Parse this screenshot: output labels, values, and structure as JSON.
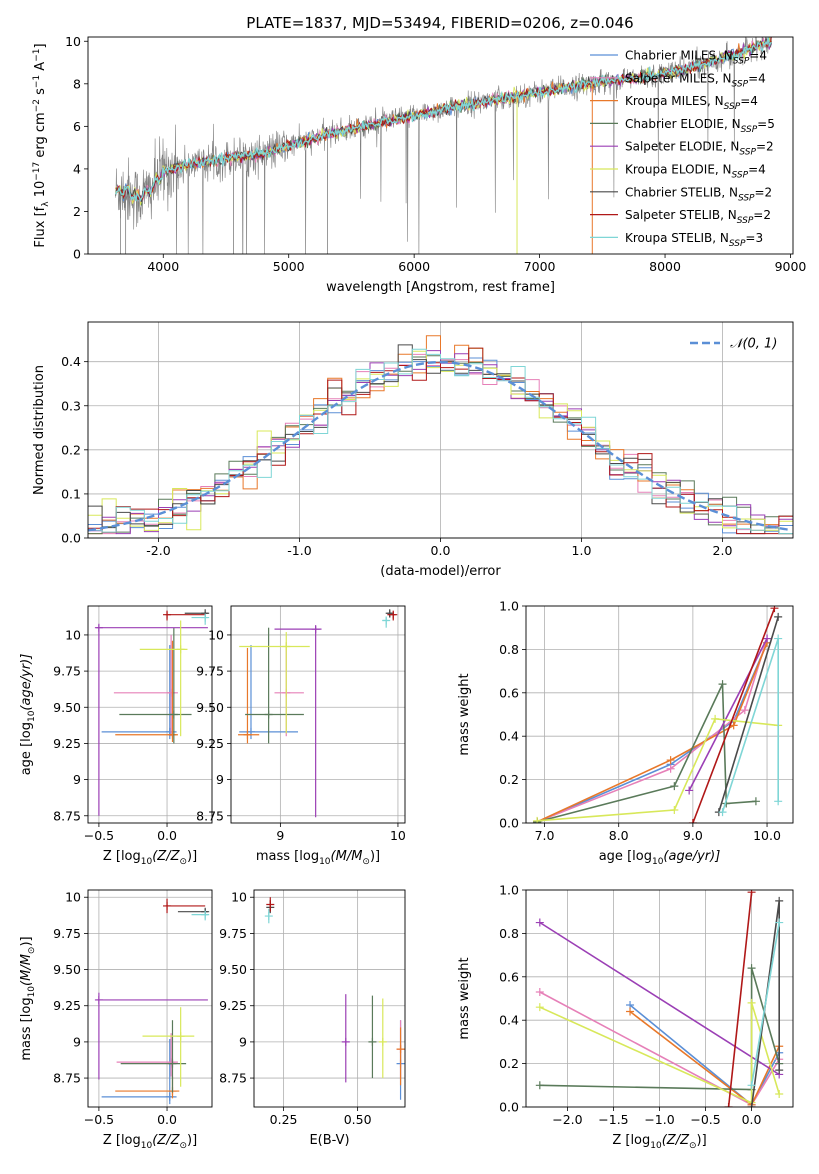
{
  "figure": {
    "title": "PLATE=1837, MJD=53494, FIBERID=0206, z=0.046"
  },
  "legend_spectrum": [
    {
      "label": "Chabrier MILES, N",
      "sub": "SSP",
      "suffix": "=4",
      "color": "#5b8fd6"
    },
    {
      "label": "Salpeter MILES, N",
      "sub": "SSP",
      "suffix": "=4",
      "color": "#e680b8"
    },
    {
      "label": "Kroupa MILES, N",
      "sub": "SSP",
      "suffix": "=4",
      "color": "#e8782a"
    },
    {
      "label": "Chabrier ELODIE, N",
      "sub": "SSP",
      "suffix": "=5",
      "color": "#5a7a5a"
    },
    {
      "label": "Salpeter ELODIE, N",
      "sub": "SSP",
      "suffix": "=2",
      "color": "#9b3fb5"
    },
    {
      "label": "Kroupa ELODIE, N",
      "sub": "SSP",
      "suffix": "=4",
      "color": "#d8e85a"
    },
    {
      "label": "Chabrier STELIB, N",
      "sub": "SSP",
      "suffix": "=2",
      "color": "#4a4a4a"
    },
    {
      "label": "Salpeter STELIB, N",
      "sub": "SSP",
      "suffix": "=2",
      "color": "#b01818"
    },
    {
      "label": "Kroupa STELIB, N",
      "sub": "SSP",
      "suffix": "=3",
      "color": "#7fd6d6"
    }
  ],
  "legend_hist": {
    "label": "𝒩(0, 1)",
    "color": "#5b8fd6"
  },
  "chart_data": [
    {
      "id": "spectrum",
      "type": "line",
      "xlabel": "wavelength [Angstrom, rest frame]",
      "ylabel": "Flux [f_λ 10^-17 erg cm^-2 s^-1 A^-1]",
      "xlim": [
        3400,
        9020
      ],
      "ylim": [
        0,
        10.2
      ],
      "xticks": [
        4000,
        5000,
        6000,
        7000,
        8000,
        9000
      ],
      "yticks": [
        0,
        2,
        4,
        6,
        8,
        10
      ],
      "continuum": {
        "x": [
          3620,
          3700,
          3800,
          3900,
          4000,
          4200,
          4500,
          4800,
          5000,
          5300,
          5600,
          6000,
          6300,
          6600,
          6900,
          7200,
          7500,
          7800,
          8100,
          8400,
          8800
        ],
        "y": [
          2.9,
          3.0,
          2.6,
          3.0,
          3.9,
          4.2,
          4.5,
          4.7,
          5.1,
          5.6,
          6.0,
          6.5,
          6.9,
          7.2,
          7.5,
          7.8,
          8.1,
          8.3,
          8.6,
          9.1,
          9.9
        ]
      },
      "grid": false
    },
    {
      "id": "residual-hist",
      "type": "histogram",
      "xlabel": "(data-model)/error",
      "ylabel": "Normed distribution",
      "xlim": [
        -2.5,
        2.5
      ],
      "ylim": [
        0,
        0.49
      ],
      "xticks": [
        -2,
        -1,
        0,
        1,
        2
      ],
      "yticks": [
        0.0,
        0.1,
        0.2,
        0.3,
        0.4
      ],
      "bin_width": 0.1,
      "grid": true
    },
    {
      "id": "age-vs-Z",
      "type": "errorbar",
      "xlabel": "Z [log10(Z/Z⊙)]",
      "ylabel": "age  [log10(age/yr)]",
      "xlim": [
        -0.58,
        0.33
      ],
      "ylim": [
        8.7,
        10.2
      ],
      "xticks": [
        -0.5,
        0.0
      ],
      "yticks": [
        8.75,
        9.0,
        9.25,
        9.5,
        9.75,
        10.0
      ],
      "points": [
        {
          "x": 0.02,
          "xerr": [
            0.5,
            0.05
          ],
          "y": 9.33,
          "yerr": [
            0.05,
            0.6
          ],
          "color": "#5b8fd6"
        },
        {
          "x": 0.03,
          "xerr": [
            0.42,
            0.05
          ],
          "y": 9.6,
          "yerr": [
            0.3,
            0.4
          ],
          "color": "#e680b8"
        },
        {
          "x": 0.04,
          "xerr": [
            0.42,
            0.04
          ],
          "y": 9.31,
          "yerr": [
            0.05,
            0.65
          ],
          "color": "#e8782a"
        },
        {
          "x": 0.05,
          "xerr": [
            0.4,
            0.13
          ],
          "y": 9.45,
          "yerr": [
            0.2,
            0.6
          ],
          "color": "#5a7a5a"
        },
        {
          "x": -0.5,
          "xerr": [
            0.02,
            0.8
          ],
          "y": 10.05,
          "yerr": [
            1.3,
            0.02
          ],
          "color": "#9b3fb5"
        },
        {
          "x": 0.1,
          "xerr": [
            0.3,
            0.05
          ],
          "y": 9.9,
          "yerr": [
            0.6,
            0.2
          ],
          "color": "#d8e85a"
        },
        {
          "x": 0.28,
          "xerr": [
            0.15,
            0.02
          ],
          "y": 10.15,
          "yerr": [
            0.03,
            0.01
          ],
          "color": "#4a4a4a"
        },
        {
          "x": 0.0,
          "xerr": [
            0.01,
            0.28
          ],
          "y": 10.14,
          "yerr": [
            0.04,
            0.02
          ],
          "color": "#b01818"
        },
        {
          "x": 0.28,
          "xerr": [
            0.1,
            0.02
          ],
          "y": 10.12,
          "yerr": [
            0.05,
            0.02
          ],
          "color": "#7fd6d6"
        }
      ],
      "grid": true
    },
    {
      "id": "age-vs-mass",
      "type": "errorbar",
      "xlabel": "mass [log10(M/M⊙)]",
      "ylabel": "",
      "xlim": [
        8.58,
        10.06
      ],
      "ylim": [
        8.7,
        10.2
      ],
      "xticks": [
        9,
        10
      ],
      "yticks": [
        8.75,
        9.0,
        9.25,
        9.5,
        9.75,
        10.0
      ],
      "points": [
        {
          "x": 8.75,
          "xerr": [
            0.1,
            0.4
          ],
          "y": 9.33,
          "yerr": [
            0.05,
            0.6
          ],
          "color": "#5b8fd6"
        },
        {
          "x": 9.05,
          "xerr": [
            0.1,
            0.15
          ],
          "y": 9.6,
          "yerr": [
            0.3,
            0.35
          ],
          "color": "#e680b8"
        },
        {
          "x": 8.72,
          "xerr": [
            0.08,
            0.1
          ],
          "y": 9.31,
          "yerr": [
            0.06,
            0.6
          ],
          "color": "#e8782a"
        },
        {
          "x": 8.9,
          "xerr": [
            0.2,
            0.3
          ],
          "y": 9.45,
          "yerr": [
            0.2,
            0.6
          ],
          "color": "#5a7a5a"
        },
        {
          "x": 9.3,
          "xerr": [
            0.35,
            0.05
          ],
          "y": 10.04,
          "yerr": [
            1.3,
            0.02
          ],
          "color": "#9b3fb5"
        },
        {
          "x": 9.05,
          "xerr": [
            0.4,
            0.2
          ],
          "y": 9.92,
          "yerr": [
            0.6,
            0.1
          ],
          "color": "#d8e85a"
        },
        {
          "x": 9.93,
          "xerr": [
            0.02,
            0.02
          ],
          "y": 10.15,
          "yerr": [
            0.03,
            0.02
          ],
          "color": "#4a4a4a"
        },
        {
          "x": 9.96,
          "xerr": [
            0.05,
            0.02
          ],
          "y": 10.14,
          "yerr": [
            0.04,
            0.02
          ],
          "color": "#b01818"
        },
        {
          "x": 9.9,
          "xerr": [
            0.03,
            0.02
          ],
          "y": 10.1,
          "yerr": [
            0.05,
            0.02
          ],
          "color": "#7fd6d6"
        }
      ],
      "grid": true
    },
    {
      "id": "massweight-vs-age",
      "type": "line",
      "xlabel": "age  [log10(age/yr)]",
      "ylabel": "mass weight",
      "xlim": [
        6.75,
        10.35
      ],
      "ylim": [
        0,
        1.0
      ],
      "xticks": [
        7,
        8,
        9,
        10
      ],
      "yticks": [
        0.0,
        0.2,
        0.4,
        0.6,
        0.8,
        1.0
      ],
      "series": [
        {
          "color": "#5b8fd6",
          "x": [
            6.9,
            8.7,
            9.55,
            10.0
          ],
          "y": [
            0.005,
            0.27,
            0.47,
            0.83
          ]
        },
        {
          "color": "#e680b8",
          "x": [
            6.9,
            8.7,
            9.7,
            10.0
          ],
          "y": [
            0.005,
            0.25,
            0.52,
            0.85
          ]
        },
        {
          "color": "#e8782a",
          "x": [
            6.9,
            8.7,
            9.55,
            10.0
          ],
          "y": [
            0.005,
            0.29,
            0.45,
            0.83
          ]
        },
        {
          "color": "#5a7a5a",
          "x": [
            6.9,
            8.75,
            9.4,
            9.45,
            9.85
          ],
          "y": [
            0.005,
            0.17,
            0.64,
            0.09,
            0.1
          ]
        },
        {
          "color": "#9b3fb5",
          "x": [
            8.95,
            10.0
          ],
          "y": [
            0.15,
            0.85
          ]
        },
        {
          "color": "#d8e85a",
          "x": [
            6.9,
            8.75,
            9.3,
            10.15
          ],
          "y": [
            0.01,
            0.06,
            0.48,
            0.45
          ]
        },
        {
          "color": "#4a4a4a",
          "x": [
            9.35,
            10.15
          ],
          "y": [
            0.05,
            0.95
          ]
        },
        {
          "color": "#b01818",
          "x": [
            9.0,
            10.1
          ],
          "y": [
            0.0,
            0.99
          ]
        },
        {
          "color": "#7fd6d6",
          "x": [
            9.4,
            10.15,
            10.15
          ],
          "y": [
            0.05,
            0.85,
            0.1
          ]
        }
      ],
      "grid": true
    },
    {
      "id": "mass-vs-Z",
      "type": "errorbar",
      "xlabel": "Z [log10(Z/Z⊙)]",
      "ylabel": "mass [log10(M/M⊙)]",
      "xlim": [
        -0.58,
        0.33
      ],
      "ylim": [
        8.55,
        10.05
      ],
      "xticks": [
        -0.5,
        0.0
      ],
      "yticks": [
        8.75,
        9.0,
        9.25,
        9.5,
        9.75,
        10.0
      ],
      "points": [
        {
          "x": 0.02,
          "xerr": [
            0.5,
            0.05
          ],
          "y": 8.62,
          "yerr": [
            0.05,
            0.4
          ],
          "color": "#5b8fd6"
        },
        {
          "x": 0.03,
          "xerr": [
            0.4,
            0.05
          ],
          "y": 8.86,
          "yerr": [
            0.1,
            0.2
          ],
          "color": "#e680b8"
        },
        {
          "x": 0.04,
          "xerr": [
            0.42,
            0.05
          ],
          "y": 8.66,
          "yerr": [
            0.05,
            0.1
          ],
          "color": "#e8782a"
        },
        {
          "x": 0.04,
          "xerr": [
            0.38,
            0.1
          ],
          "y": 8.85,
          "yerr": [
            0.2,
            0.3
          ],
          "color": "#5a7a5a"
        },
        {
          "x": -0.5,
          "xerr": [
            0.02,
            0.8
          ],
          "y": 9.29,
          "yerr": [
            0.55,
            0.05
          ],
          "color": "#9b3fb5"
        },
        {
          "x": 0.1,
          "xerr": [
            0.28,
            0.1
          ],
          "y": 9.04,
          "yerr": [
            0.35,
            0.2
          ],
          "color": "#d8e85a"
        },
        {
          "x": 0.28,
          "xerr": [
            0.2,
            0.02
          ],
          "y": 9.9,
          "yerr": [
            0.02,
            0.02
          ],
          "color": "#4a4a4a"
        },
        {
          "x": 0.0,
          "xerr": [
            0.01,
            0.28
          ],
          "y": 9.94,
          "yerr": [
            0.05,
            0.05
          ],
          "color": "#b01818"
        },
        {
          "x": 0.28,
          "xerr": [
            0.1,
            0.02
          ],
          "y": 9.88,
          "yerr": [
            0.04,
            0.02
          ],
          "color": "#7fd6d6"
        }
      ],
      "grid": true
    },
    {
      "id": "mass-vs-EBV",
      "type": "errorbar",
      "xlabel": "E(B-V)",
      "ylabel": "",
      "xlim": [
        0.15,
        0.66
      ],
      "ylim": [
        8.55,
        10.05
      ],
      "xticks": [
        0.25,
        0.5
      ],
      "yticks": [
        8.75,
        9.0,
        9.25,
        9.5,
        9.75,
        10.0
      ],
      "points": [
        {
          "x": 0.645,
          "y": 8.85,
          "yerr": [
            0.25,
            0.3
          ],
          "color": "#5b8fd6"
        },
        {
          "x": 0.645,
          "y": 8.95,
          "yerr": [
            0.2,
            0.2
          ],
          "color": "#e680b8"
        },
        {
          "x": 0.645,
          "y": 8.95,
          "yerr": [
            0.25,
            0.15
          ],
          "color": "#e8782a"
        },
        {
          "x": 0.55,
          "y": 9.0,
          "yerr": [
            0.25,
            0.32
          ],
          "color": "#5a7a5a"
        },
        {
          "x": 0.46,
          "y": 9.0,
          "yerr": [
            0.28,
            0.33
          ],
          "color": "#9b3fb5"
        },
        {
          "x": 0.585,
          "y": 9.0,
          "yerr": [
            0.25,
            0.3
          ],
          "color": "#d8e85a"
        },
        {
          "x": 0.205,
          "y": 9.93,
          "yerr": [
            0.04,
            0.05
          ],
          "color": "#4a4a4a"
        },
        {
          "x": 0.205,
          "y": 9.95,
          "yerr": [
            0.05,
            0.05
          ],
          "color": "#b01818"
        },
        {
          "x": 0.2,
          "y": 9.87,
          "yerr": [
            0.05,
            0.05
          ],
          "color": "#7fd6d6"
        }
      ],
      "grid": true
    },
    {
      "id": "massweight-vs-Z",
      "type": "line",
      "xlabel": "Z [log10(Z/Z⊙)]",
      "ylabel": "mass weight",
      "xlim": [
        -2.45,
        0.45
      ],
      "ylim": [
        0,
        1.0
      ],
      "xticks": [
        -2.0,
        -1.5,
        -1.0,
        -0.5,
        0.0
      ],
      "yticks": [
        0.0,
        0.2,
        0.4,
        0.6,
        0.8,
        1.0
      ],
      "series": [
        {
          "color": "#5b8fd6",
          "x": [
            -1.32,
            0.0,
            0.3
          ],
          "y": [
            0.47,
            0.01,
            0.25
          ]
        },
        {
          "color": "#e680b8",
          "x": [
            -2.3,
            0.0,
            0.3
          ],
          "y": [
            0.53,
            0.01,
            0.22
          ]
        },
        {
          "color": "#e8782a",
          "x": [
            -1.32,
            0.0,
            0.3
          ],
          "y": [
            0.44,
            0.01,
            0.28
          ]
        },
        {
          "color": "#5a7a5a",
          "x": [
            -2.3,
            0.0,
            0.0,
            0.3
          ],
          "y": [
            0.1,
            0.08,
            0.64,
            0.2
          ]
        },
        {
          "color": "#9b3fb5",
          "x": [
            -2.3,
            0.3
          ],
          "y": [
            0.85,
            0.15
          ]
        },
        {
          "color": "#d8e85a",
          "x": [
            -2.3,
            0.0,
            0.0,
            0.3
          ],
          "y": [
            0.46,
            0.02,
            0.48,
            0.06
          ]
        },
        {
          "color": "#4a4a4a",
          "x": [
            0.0,
            0.3,
            0.3
          ],
          "y": [
            0.0,
            0.95,
            0.17
          ]
        },
        {
          "color": "#b01818",
          "x": [
            -0.25,
            0.0
          ],
          "y": [
            0.0,
            0.99
          ]
        },
        {
          "color": "#7fd6d6",
          "x": [
            0.0,
            0.3
          ],
          "y": [
            0.1,
            0.85
          ]
        }
      ],
      "grid": true
    }
  ]
}
